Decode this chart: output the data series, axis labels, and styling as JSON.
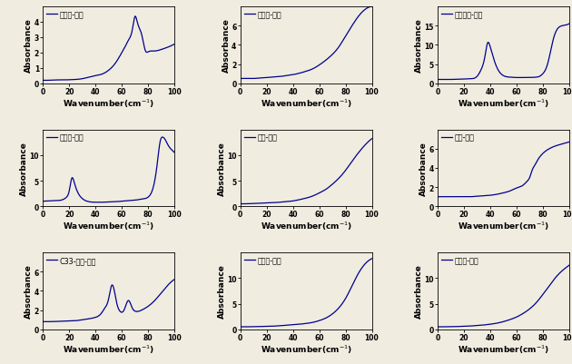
{
  "subplots": [
    {
      "label": "사청분-벨렇",
      "ylim": [
        0,
        5
      ],
      "yticks": [
        0,
        1,
        2,
        3,
        4
      ],
      "curve": {
        "x": [
          0,
          5,
          10,
          15,
          20,
          25,
          30,
          35,
          40,
          45,
          50,
          55,
          58,
          60,
          62,
          65,
          68,
          70,
          72,
          75,
          78,
          80,
          85,
          90,
          95,
          100
        ],
        "y": [
          0.2,
          0.2,
          0.22,
          0.22,
          0.23,
          0.25,
          0.3,
          0.4,
          0.5,
          0.6,
          0.85,
          1.3,
          1.7,
          2.0,
          2.3,
          2.8,
          3.5,
          4.35,
          3.9,
          3.2,
          2.1,
          2.05,
          2.1,
          2.2,
          2.35,
          2.55
        ]
      }
    },
    {
      "label": "두록분-벨렇",
      "ylim": [
        0,
        8
      ],
      "yticks": [
        0,
        2,
        4,
        6
      ],
      "curve": {
        "x": [
          0,
          5,
          10,
          15,
          20,
          25,
          30,
          35,
          40,
          45,
          50,
          55,
          60,
          65,
          70,
          75,
          80,
          85,
          90,
          95,
          100
        ],
        "y": [
          0.5,
          0.5,
          0.5,
          0.55,
          0.6,
          0.65,
          0.7,
          0.8,
          0.9,
          1.05,
          1.25,
          1.5,
          1.9,
          2.4,
          3.0,
          3.8,
          4.9,
          6.0,
          7.0,
          7.7,
          8.0
        ]
      }
    },
    {
      "label": "정상주사-벨렇",
      "ylim": [
        0,
        20
      ],
      "yticks": [
        0,
        5,
        10,
        15
      ],
      "curve": {
        "x": [
          0,
          5,
          10,
          15,
          20,
          25,
          30,
          33,
          36,
          38,
          40,
          43,
          46,
          50,
          55,
          60,
          65,
          70,
          75,
          78,
          80,
          82,
          84,
          86,
          88,
          90,
          92,
          95,
          98,
          100
        ],
        "y": [
          1.0,
          1.0,
          1.0,
          1.05,
          1.1,
          1.2,
          1.8,
          3.5,
          7.0,
          10.5,
          9.5,
          6.0,
          3.5,
          2.0,
          1.6,
          1.5,
          1.5,
          1.5,
          1.6,
          1.9,
          2.5,
          3.5,
          5.5,
          8.5,
          11.5,
          13.5,
          14.5,
          15.0,
          15.2,
          15.5
        ]
      }
    },
    {
      "label": "건은주-벨렇",
      "ylim": [
        0,
        15
      ],
      "yticks": [
        0,
        5,
        10
      ],
      "curve": {
        "x": [
          0,
          5,
          10,
          15,
          18,
          20,
          22,
          24,
          26,
          30,
          35,
          40,
          45,
          50,
          55,
          60,
          65,
          70,
          75,
          80,
          83,
          85,
          87,
          89,
          91,
          93,
          95,
          98,
          100
        ],
        "y": [
          1.0,
          1.05,
          1.1,
          1.3,
          1.8,
          3.0,
          5.5,
          4.5,
          3.0,
          1.5,
          0.9,
          0.8,
          0.8,
          0.85,
          0.9,
          1.0,
          1.1,
          1.2,
          1.4,
          1.8,
          3.0,
          5.0,
          8.5,
          12.5,
          13.5,
          13.0,
          12.0,
          11.0,
          10.5
        ]
      }
    },
    {
      "label": "벽옥-벨렇",
      "ylim": [
        0,
        15
      ],
      "yticks": [
        0,
        5,
        10
      ],
      "curve": {
        "x": [
          0,
          5,
          10,
          15,
          20,
          25,
          30,
          35,
          40,
          45,
          50,
          55,
          60,
          65,
          70,
          75,
          80,
          85,
          90,
          95,
          100
        ],
        "y": [
          0.5,
          0.5,
          0.55,
          0.6,
          0.65,
          0.7,
          0.8,
          0.9,
          1.05,
          1.3,
          1.6,
          2.0,
          2.6,
          3.3,
          4.3,
          5.5,
          7.0,
          8.8,
          10.5,
          12.0,
          13.2
        ]
      }
    },
    {
      "label": "청목-벨렇",
      "ylim": [
        0,
        8
      ],
      "yticks": [
        0,
        2,
        4,
        6
      ],
      "curve": {
        "x": [
          0,
          5,
          10,
          15,
          20,
          25,
          30,
          35,
          40,
          45,
          50,
          55,
          60,
          65,
          68,
          70,
          72,
          74,
          76,
          78,
          80,
          85,
          90,
          95,
          100
        ],
        "y": [
          1.0,
          1.0,
          1.0,
          1.0,
          1.0,
          1.0,
          1.05,
          1.1,
          1.15,
          1.25,
          1.4,
          1.6,
          1.9,
          2.2,
          2.6,
          3.0,
          3.8,
          4.3,
          4.8,
          5.2,
          5.5,
          6.0,
          6.3,
          6.5,
          6.7
        ]
      }
    },
    {
      "label": "C33-자황-벨렇",
      "ylim": [
        0,
        8
      ],
      "yticks": [
        0,
        2,
        4,
        6
      ],
      "curve": {
        "x": [
          0,
          5,
          10,
          15,
          20,
          25,
          30,
          35,
          40,
          44,
          47,
          50,
          52,
          54,
          56,
          58,
          62,
          65,
          68,
          70,
          75,
          80,
          85,
          90,
          95,
          100
        ],
        "y": [
          0.8,
          0.8,
          0.82,
          0.85,
          0.88,
          0.9,
          1.0,
          1.1,
          1.25,
          1.6,
          2.2,
          3.2,
          4.5,
          4.2,
          2.8,
          2.0,
          2.1,
          3.0,
          2.2,
          1.9,
          2.0,
          2.4,
          3.0,
          3.8,
          4.6,
          5.2
        ]
      }
    },
    {
      "label": "백방해-벨렇",
      "ylim": [
        0,
        15
      ],
      "yticks": [
        0,
        5,
        10
      ],
      "curve": {
        "x": [
          0,
          5,
          10,
          15,
          20,
          25,
          30,
          35,
          40,
          45,
          50,
          55,
          60,
          65,
          70,
          75,
          80,
          85,
          90,
          95,
          100
        ],
        "y": [
          0.5,
          0.5,
          0.52,
          0.55,
          0.58,
          0.62,
          0.7,
          0.8,
          0.9,
          1.0,
          1.15,
          1.35,
          1.7,
          2.2,
          3.0,
          4.2,
          6.0,
          8.5,
          11.0,
          12.8,
          13.8
        ]
      }
    },
    {
      "label": "청리외-벨렇",
      "ylim": [
        0,
        15
      ],
      "yticks": [
        0,
        5,
        10
      ],
      "curve": {
        "x": [
          0,
          5,
          10,
          15,
          20,
          25,
          30,
          35,
          40,
          45,
          50,
          55,
          60,
          65,
          70,
          75,
          80,
          85,
          90,
          95,
          100
        ],
        "y": [
          0.5,
          0.5,
          0.52,
          0.55,
          0.6,
          0.65,
          0.75,
          0.85,
          1.0,
          1.2,
          1.5,
          1.9,
          2.4,
          3.1,
          4.0,
          5.2,
          6.8,
          8.5,
          10.2,
          11.5,
          12.5
        ]
      }
    }
  ],
  "line_color": "#00008B",
  "xlabel": "Wavenumber(cm$^{-1}$)",
  "ylabel": "Absorbance",
  "xlim": [
    0,
    100
  ],
  "xticks": [
    0,
    20,
    40,
    60,
    80,
    100
  ],
  "background_color": "#f0ece0",
  "tick_fontsize": 5.5,
  "legend_fontsize": 5.8,
  "xlabel_fontsize": 6.5,
  "ylabel_fontsize": 6.5
}
